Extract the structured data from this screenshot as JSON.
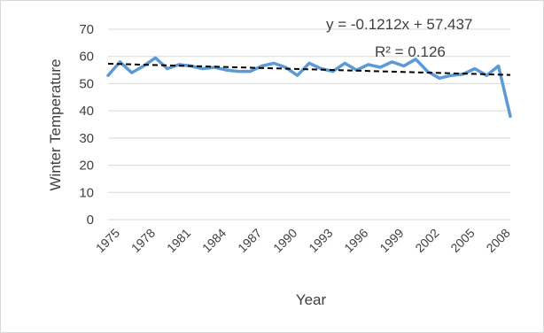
{
  "chart_data": {
    "type": "line",
    "title": "",
    "xlabel": "Year",
    "ylabel": "Winter Temperature",
    "ylim": [
      0,
      70
    ],
    "yticks": [
      0,
      10,
      20,
      30,
      40,
      50,
      60,
      70
    ],
    "xlim": [
      1975,
      2009
    ],
    "xticks": [
      1975,
      1978,
      1981,
      1984,
      1987,
      1990,
      1993,
      1996,
      1999,
      2002,
      2005,
      2008
    ],
    "grid": true,
    "legend": "none",
    "colors": {
      "series": "#5b9bd5",
      "trendline": "#000000",
      "grid": "#d9d9d9"
    },
    "series": [
      {
        "x": [
          1975,
          1976,
          1977,
          1978,
          1979,
          1980,
          1981,
          1982,
          1983,
          1984,
          1985,
          1986,
          1987,
          1988,
          1989,
          1990,
          1991,
          1992,
          1993,
          1994,
          1995,
          1996,
          1997,
          1998,
          1999,
          2000,
          2001,
          2002,
          2003,
          2004,
          2005,
          2006,
          2007,
          2008,
          2009
        ],
        "values": [
          53,
          58,
          54,
          56.5,
          59.5,
          55.5,
          57,
          56.5,
          55.5,
          56,
          55,
          54.5,
          54.5,
          56.5,
          57.5,
          56,
          53,
          57.5,
          55.5,
          54.5,
          57.5,
          55,
          57,
          56,
          58,
          56.5,
          59,
          54.5,
          52,
          53,
          53.5,
          55.5,
          53,
          56.5,
          38
        ]
      }
    ],
    "trendline": {
      "type": "linear",
      "slope": -0.1212,
      "intercept": 57.437,
      "equation_label": "y = -0.1212x + 57.437",
      "r2_label": "R² = 0.126"
    }
  }
}
